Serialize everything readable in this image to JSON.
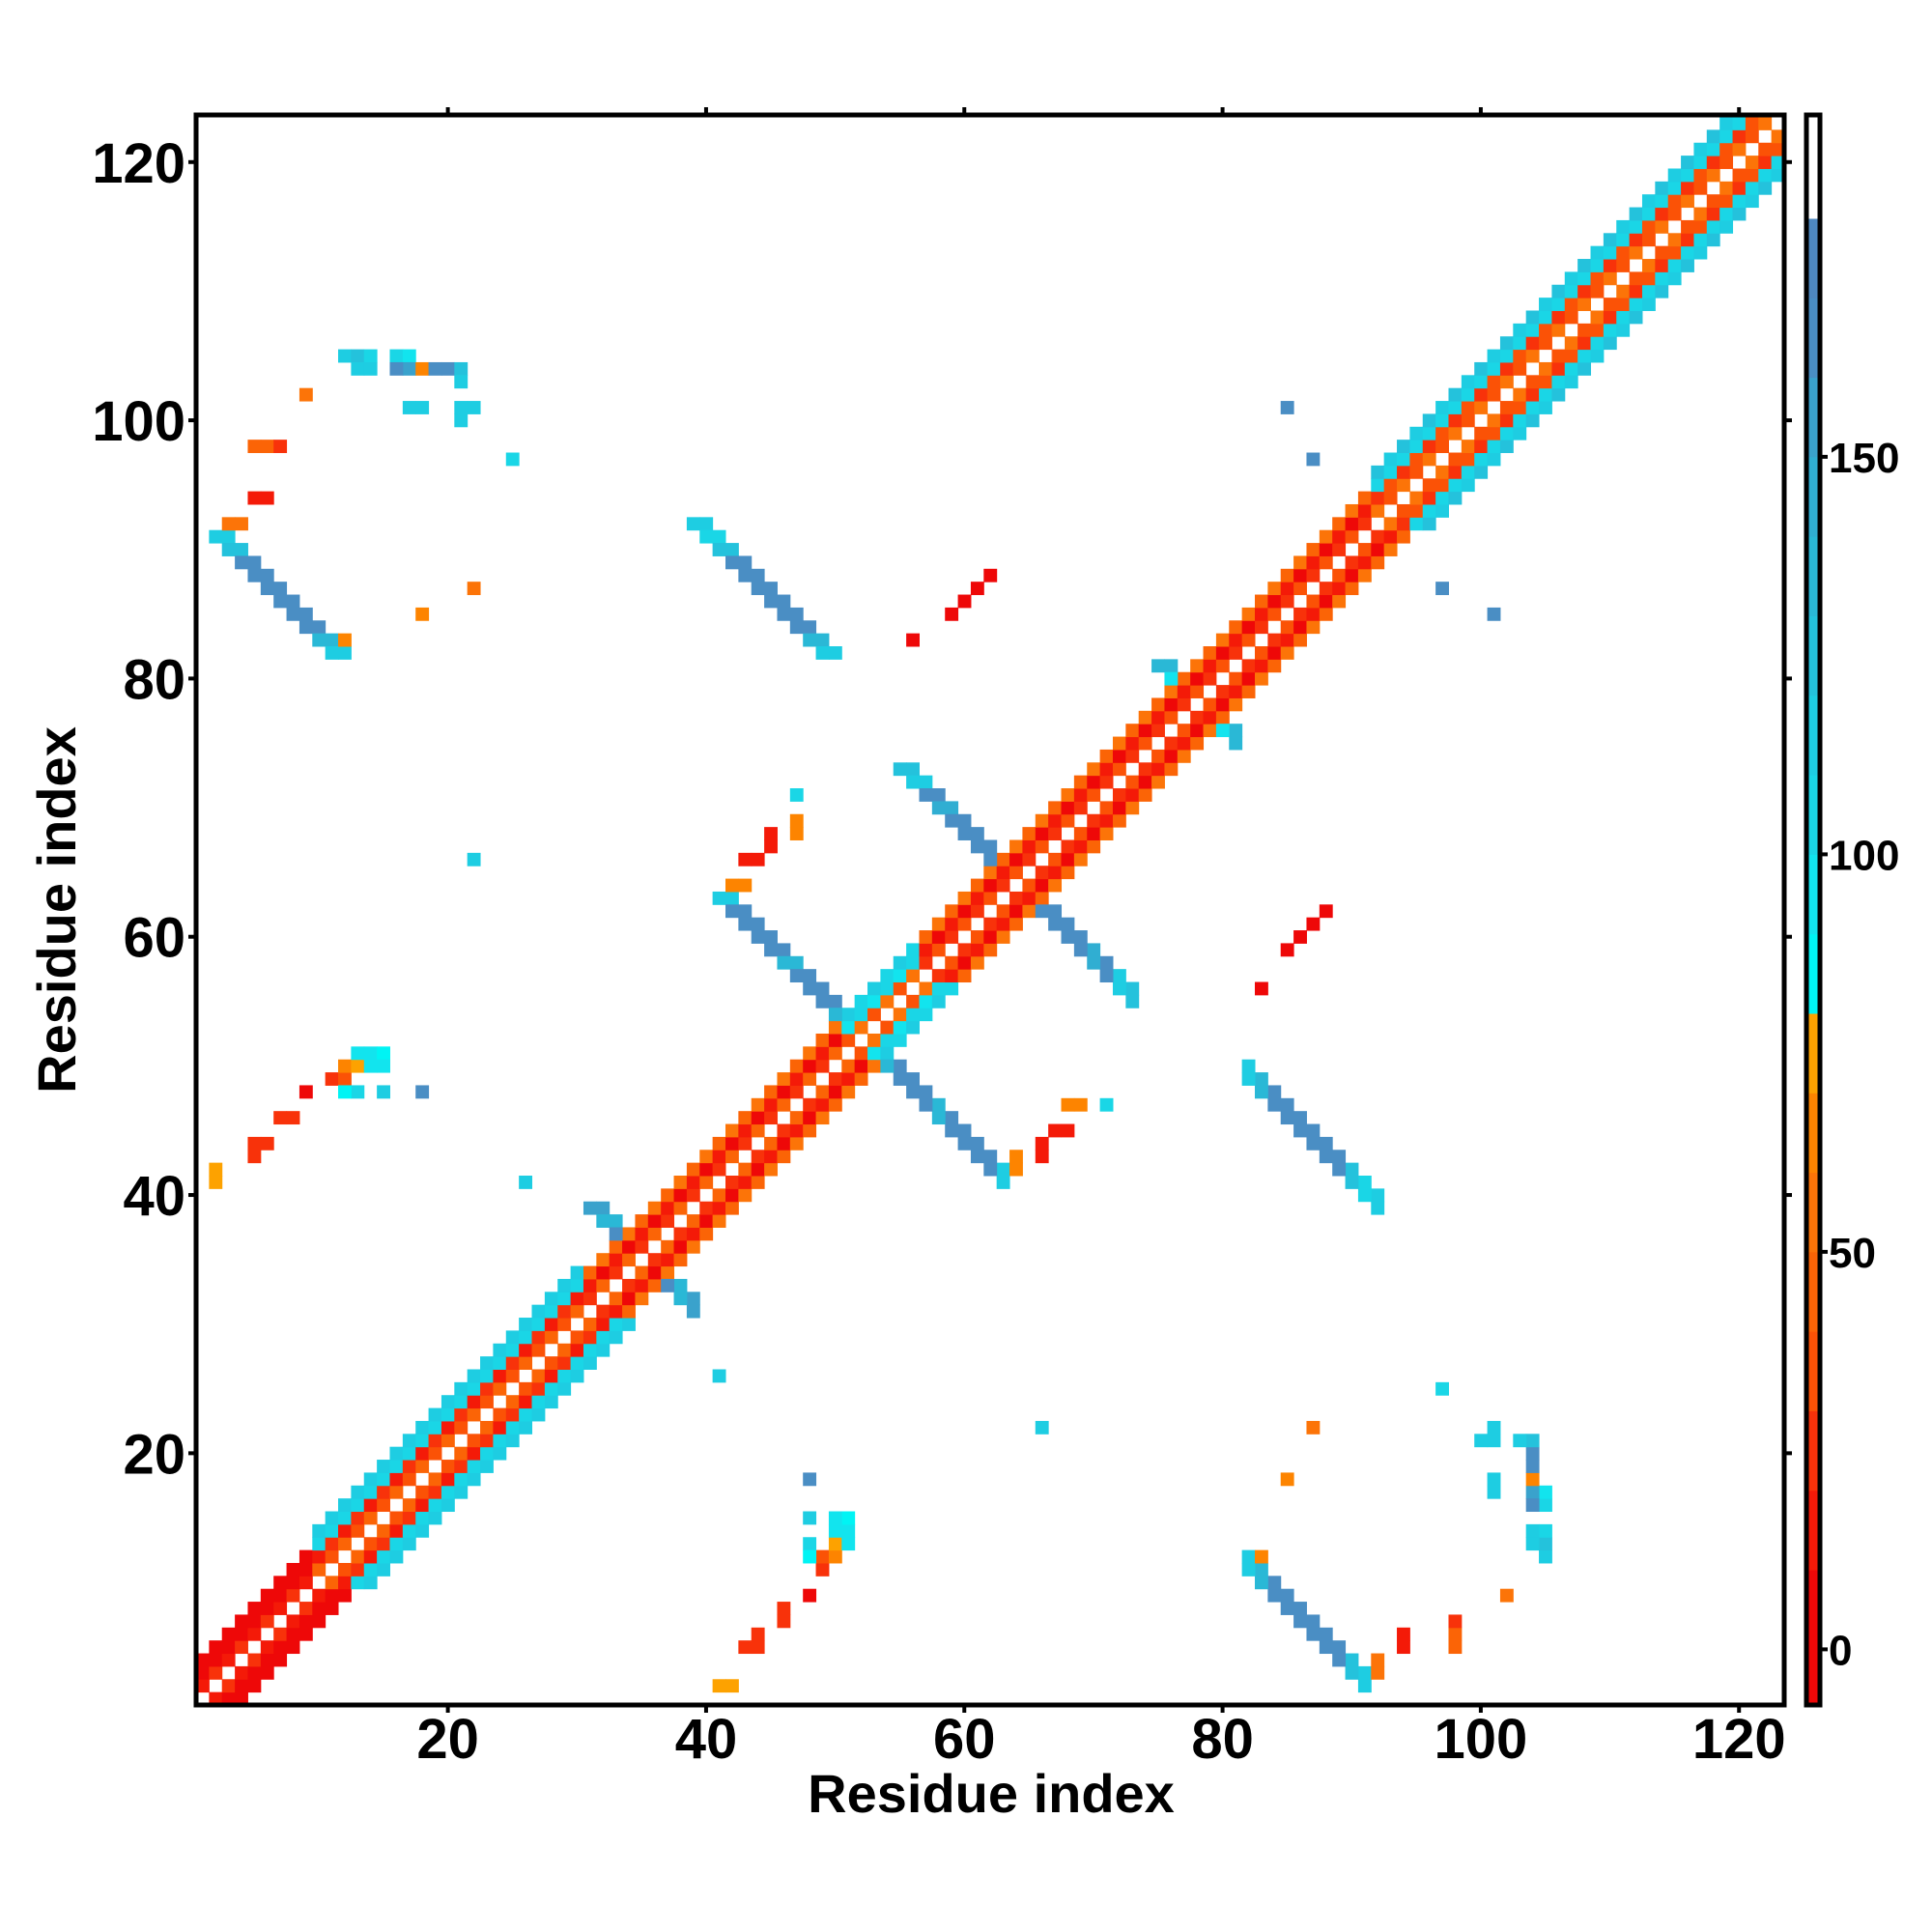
{
  "chart_data": {
    "type": "heatmap",
    "title": "",
    "xlabel": "Residue index",
    "ylabel": "Residue index",
    "n_residues": 123,
    "xlim": [
      0.5,
      123.5
    ],
    "ylim": [
      0.5,
      123.5
    ],
    "x_ticks": [
      20,
      40,
      60,
      80,
      100,
      120
    ],
    "x_tick_labels": [
      "20",
      "40",
      "60",
      "80",
      "100",
      "120"
    ],
    "y_ticks": [
      20,
      40,
      60,
      80,
      100,
      120
    ],
    "y_tick_labels": [
      "20",
      "40",
      "60",
      "80",
      "100",
      "120"
    ],
    "symmetric": true,
    "grid": false,
    "colorbar": {
      "range": [
        -7,
        193
      ],
      "ticks": [
        0,
        50,
        100,
        150
      ],
      "tick_labels": [
        "0",
        "50",
        "100",
        "150"
      ],
      "bins": [
        [
          -10,
          10,
          "#ee0808"
        ],
        [
          10,
          20,
          "#f41a08"
        ],
        [
          20,
          30,
          "#f8320a"
        ],
        [
          30,
          40,
          "#fb5206"
        ],
        [
          40,
          50,
          "#fb6406"
        ],
        [
          50,
          60,
          "#fc7408"
        ],
        [
          60,
          70,
          "#fd8400"
        ],
        [
          70,
          80,
          "#fda200"
        ],
        [
          80,
          90,
          "#00f4f4"
        ],
        [
          90,
          100,
          "#12e4ee"
        ],
        [
          100,
          110,
          "#1ad6e6"
        ],
        [
          110,
          120,
          "#1ecde2"
        ],
        [
          120,
          130,
          "#24c2dc"
        ],
        [
          130,
          140,
          "#2ab8d6"
        ],
        [
          140,
          150,
          "#30aed2"
        ],
        [
          150,
          160,
          "#3aa2cc"
        ],
        [
          160,
          170,
          "#4a8ec4"
        ],
        [
          170,
          180,
          "#4e88c0"
        ],
        [
          180,
          200,
          "#ffffff"
        ]
      ]
    },
    "diagonal_bands": [
      {
        "from": 1,
        "to": 9,
        "offsets": [
          25,
          8,
          5
        ]
      },
      {
        "from": 10,
        "to": 30,
        "offsets": [
          45,
          28,
          100,
          110
        ]
      },
      {
        "from": 31,
        "to": 50,
        "offsets": [
          40,
          15,
          55
        ]
      },
      {
        "from": 51,
        "to": 56,
        "offsets": [
          50,
          95,
          105
        ]
      },
      {
        "from": 57,
        "to": 91,
        "offsets": [
          35,
          10,
          55
        ]
      },
      {
        "from": 92,
        "to": 122,
        "offsets": [
          50,
          35,
          100,
          115
        ]
      }
    ],
    "strands": [
      {
        "i": 2,
        "j": 91,
        "width": 2,
        "values": [
          110,
          120,
          165,
          165,
          165,
          165,
          160,
          160,
          130,
          115
        ]
      },
      {
        "i": 39,
        "j": 92,
        "width": 2,
        "values": [
          115,
          105,
          120,
          165,
          165,
          165,
          160,
          165,
          160,
          130,
          115
        ]
      },
      {
        "i": 41,
        "j": 63,
        "width": 2,
        "values": [
          115,
          160,
          165,
          165,
          165,
          130,
          165,
          165,
          165,
          130,
          95
        ]
      },
      {
        "i": 55,
        "j": 73,
        "width": 2,
        "values": [
          120,
          115,
          165,
          140,
          160,
          165,
          165,
          165,
          150
        ]
      },
      {
        "i": 31,
        "j": 39,
        "width": 2,
        "values": [
          150,
          130,
          160
        ]
      },
      {
        "i": 75,
        "j": 81,
        "width": 2,
        "values": [
          130,
          95,
          120
        ]
      }
    ],
    "contacts": [
      [
        25,
        97,
        105
      ],
      [
        9,
        102,
        55
      ],
      [
        5,
        98,
        45
      ],
      [
        6,
        98,
        45
      ],
      [
        7,
        98,
        25
      ],
      [
        5,
        94,
        15
      ],
      [
        6,
        94,
        15
      ],
      [
        3,
        92,
        55
      ],
      [
        4,
        92,
        55
      ],
      [
        2,
        91,
        65
      ],
      [
        22,
        87,
        55
      ],
      [
        18,
        85,
        60
      ],
      [
        12,
        83,
        60
      ],
      [
        11,
        83,
        50
      ],
      [
        12,
        105,
        115
      ],
      [
        13,
        105,
        120
      ],
      [
        14,
        105,
        105
      ],
      [
        13,
        104,
        115
      ],
      [
        14,
        104,
        110
      ],
      [
        16,
        105,
        105
      ],
      [
        17,
        105,
        95
      ],
      [
        17,
        104,
        150
      ],
      [
        16,
        104,
        165
      ],
      [
        18,
        104,
        65
      ],
      [
        19,
        104,
        160
      ],
      [
        20,
        104,
        165
      ],
      [
        21,
        104,
        120
      ],
      [
        21,
        103,
        110
      ],
      [
        17,
        101,
        110
      ],
      [
        18,
        101,
        110
      ],
      [
        21,
        101,
        115
      ],
      [
        22,
        101,
        115
      ],
      [
        21,
        100,
        110
      ],
      [
        22,
        66,
        110
      ],
      [
        47,
        71,
        105
      ],
      [
        47,
        69,
        65
      ],
      [
        47,
        68,
        65
      ],
      [
        43,
        66,
        15
      ],
      [
        44,
        66,
        15
      ],
      [
        45,
        67,
        15
      ],
      [
        45,
        68,
        15
      ],
      [
        42,
        64,
        60
      ],
      [
        43,
        64,
        60
      ],
      [
        56,
        83,
        5
      ],
      [
        59,
        85,
        5
      ],
      [
        60,
        86,
        5
      ],
      [
        61,
        87,
        5
      ],
      [
        62,
        88,
        5
      ],
      [
        26,
        41,
        110
      ],
      [
        18,
        48,
        160
      ],
      [
        85,
        101,
        160
      ],
      [
        87,
        97,
        160
      ],
      [
        2,
        41,
        70
      ],
      [
        2,
        42,
        70
      ],
      [
        5,
        43,
        20
      ],
      [
        5,
        44,
        20
      ],
      [
        6,
        44,
        20
      ],
      [
        7,
        46,
        20
      ],
      [
        8,
        46,
        20
      ],
      [
        9,
        48,
        5
      ],
      [
        11,
        49,
        25
      ],
      [
        12,
        49,
        35
      ],
      [
        12,
        50,
        60
      ],
      [
        13,
        50,
        70
      ],
      [
        13,
        51,
        90
      ],
      [
        14,
        51,
        90
      ],
      [
        15,
        51,
        85
      ],
      [
        15,
        50,
        90
      ],
      [
        14,
        50,
        90
      ],
      [
        13,
        48,
        100
      ],
      [
        15,
        48,
        115
      ],
      [
        12,
        48,
        85
      ]
    ]
  }
}
